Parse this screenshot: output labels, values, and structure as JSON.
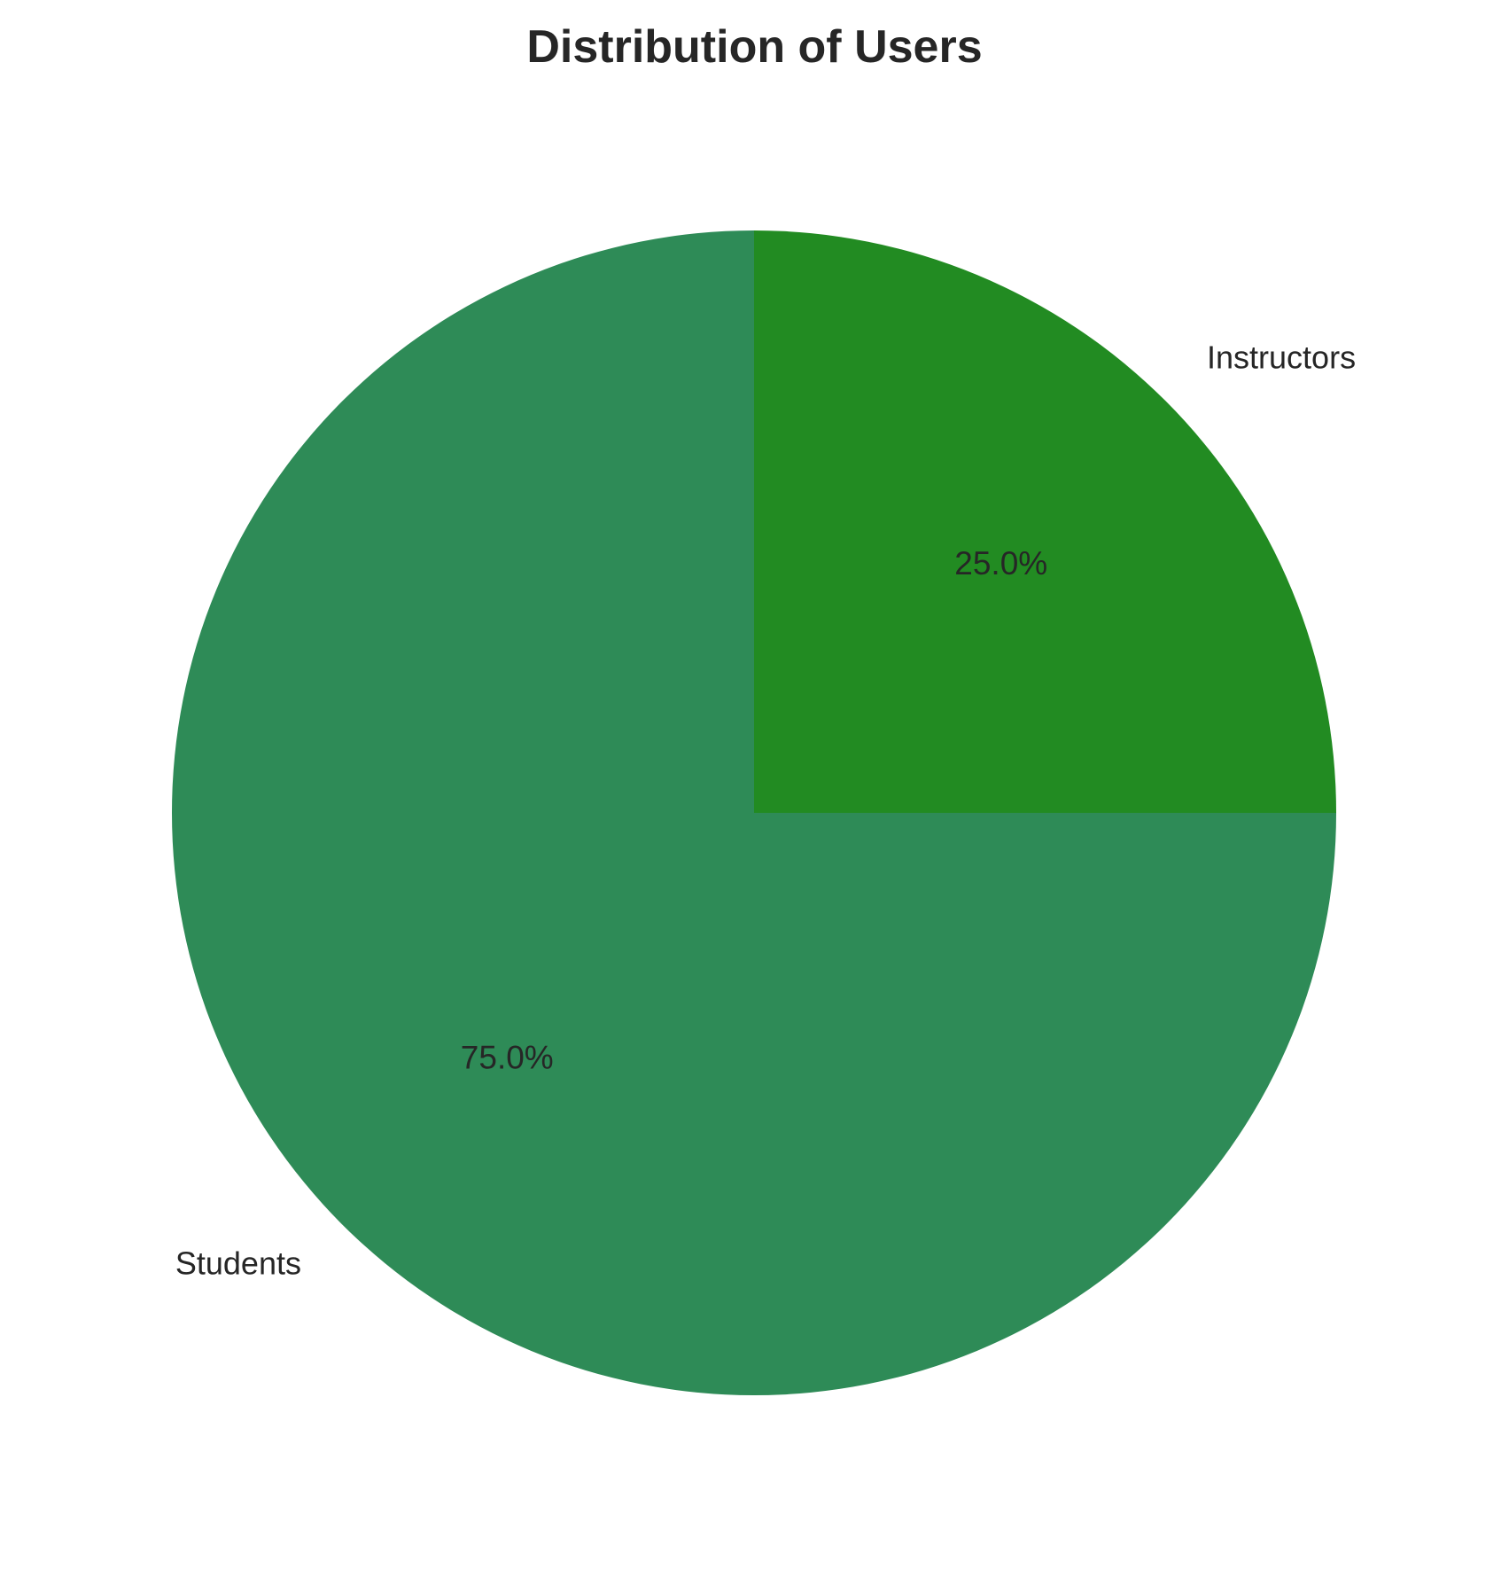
{
  "chart_data": {
    "type": "pie",
    "title": "Distribution of Users",
    "categories": [
      "Instructors",
      "Students"
    ],
    "values": [
      25,
      75
    ],
    "percent_labels": [
      "25.0%",
      "75.0%"
    ],
    "colors": [
      "#228b22",
      "#2e8b57"
    ],
    "start_angle": "90 degrees (top)",
    "direction": "counterclockwise from top",
    "legend": "none"
  }
}
